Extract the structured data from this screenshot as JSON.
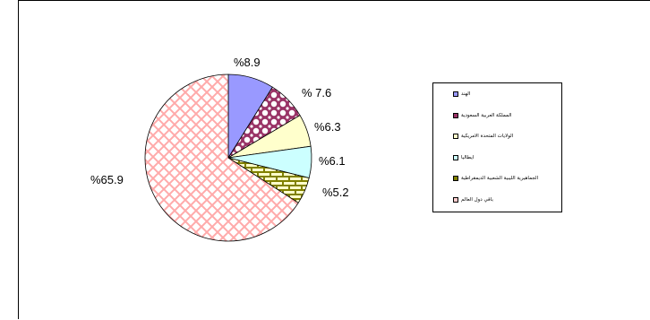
{
  "chart_data": {
    "type": "pie",
    "title": "",
    "categories": [
      "الهند",
      "المملكة العربية السعودية",
      "الولايات المتحدة الامريكية",
      "ايطاليا",
      "الجماهيرية الليبية الشعبية الديمقراطية",
      "باقي دول العالم"
    ],
    "values": [
      8.9,
      7.6,
      6.3,
      6.1,
      5.2,
      65.9
    ],
    "labels": [
      "%8.9",
      "% 7.6",
      "%6.3",
      "%6.1",
      "%5.2",
      "%65.9"
    ],
    "colors": [
      "#9999ff",
      "#993366",
      "#ffffcc",
      "#ccffff",
      "#808000",
      "#ffcccc"
    ],
    "legend_position": "right",
    "start_angle_deg": 0,
    "direction": "clockwise"
  }
}
